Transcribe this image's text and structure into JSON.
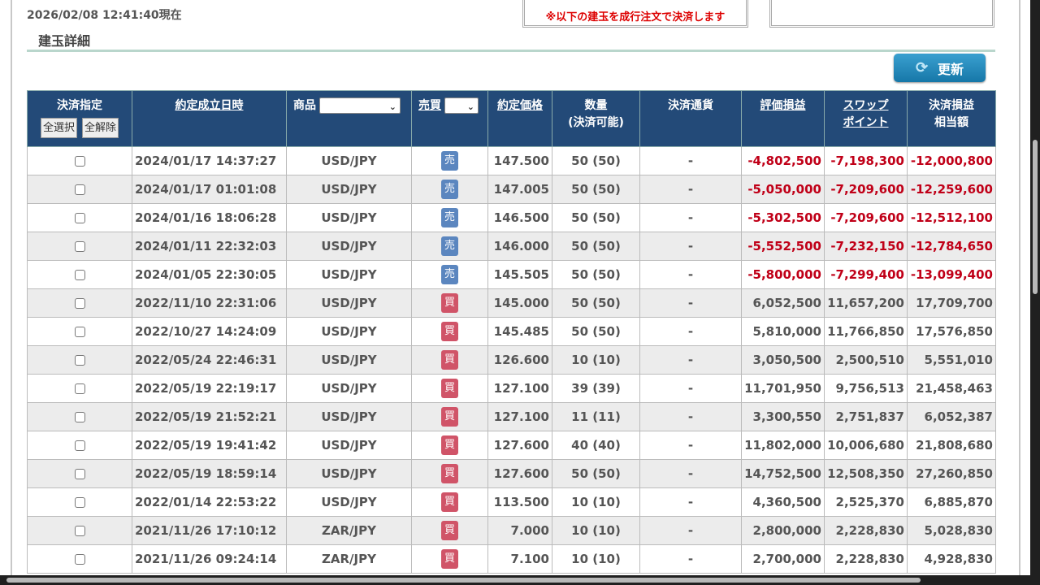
{
  "as_of": "2026/02/08 12:41:40現在",
  "section_title": "建玉詳細",
  "notice": "※以下の建玉を成行注文で決済します",
  "refresh_label": "更新",
  "header": {
    "settle": "決済指定",
    "select_all": "全選択",
    "clear_all": "全解除",
    "datetime": "約定成立日時",
    "product": "商品",
    "side": "売買",
    "price": "約定価格",
    "qty": "数量",
    "qty_sub": "(決済可能)",
    "currency": "決済通貨",
    "unrealized": "評価損益",
    "swap1": "スワップ",
    "swap2": "ポイント",
    "pl1": "決済損益",
    "pl2": "相当額",
    "product_selected": "",
    "side_selected": ""
  },
  "colors": {
    "header_bg": "#234a78",
    "sell": "#5b86bf",
    "buy": "#d05468",
    "negative": "#c00018"
  },
  "rows": [
    {
      "dt": "2024/01/17 14:37:27",
      "product": "USD/JPY",
      "side": "売",
      "price": "147.500",
      "qty": "50 (50)",
      "cur": "-",
      "pl": "-4,802,500",
      "swap": "-7,198,300",
      "total": "-12,000,800"
    },
    {
      "dt": "2024/01/17 01:01:08",
      "product": "USD/JPY",
      "side": "売",
      "price": "147.005",
      "qty": "50 (50)",
      "cur": "-",
      "pl": "-5,050,000",
      "swap": "-7,209,600",
      "total": "-12,259,600"
    },
    {
      "dt": "2024/01/16 18:06:28",
      "product": "USD/JPY",
      "side": "売",
      "price": "146.500",
      "qty": "50 (50)",
      "cur": "-",
      "pl": "-5,302,500",
      "swap": "-7,209,600",
      "total": "-12,512,100"
    },
    {
      "dt": "2024/01/11 22:32:03",
      "product": "USD/JPY",
      "side": "売",
      "price": "146.000",
      "qty": "50 (50)",
      "cur": "-",
      "pl": "-5,552,500",
      "swap": "-7,232,150",
      "total": "-12,784,650"
    },
    {
      "dt": "2024/01/05 22:30:05",
      "product": "USD/JPY",
      "side": "売",
      "price": "145.505",
      "qty": "50 (50)",
      "cur": "-",
      "pl": "-5,800,000",
      "swap": "-7,299,400",
      "total": "-13,099,400"
    },
    {
      "dt": "2022/11/10 22:31:06",
      "product": "USD/JPY",
      "side": "買",
      "price": "145.000",
      "qty": "50 (50)",
      "cur": "-",
      "pl": "6,052,500",
      "swap": "11,657,200",
      "total": "17,709,700"
    },
    {
      "dt": "2022/10/27 14:24:09",
      "product": "USD/JPY",
      "side": "買",
      "price": "145.485",
      "qty": "50 (50)",
      "cur": "-",
      "pl": "5,810,000",
      "swap": "11,766,850",
      "total": "17,576,850"
    },
    {
      "dt": "2022/05/24 22:46:31",
      "product": "USD/JPY",
      "side": "買",
      "price": "126.600",
      "qty": "10 (10)",
      "cur": "-",
      "pl": "3,050,500",
      "swap": "2,500,510",
      "total": "5,551,010"
    },
    {
      "dt": "2022/05/19 22:19:17",
      "product": "USD/JPY",
      "side": "買",
      "price": "127.100",
      "qty": "39 (39)",
      "cur": "-",
      "pl": "11,701,950",
      "swap": "9,756,513",
      "total": "21,458,463"
    },
    {
      "dt": "2022/05/19 21:52:21",
      "product": "USD/JPY",
      "side": "買",
      "price": "127.100",
      "qty": "11 (11)",
      "cur": "-",
      "pl": "3,300,550",
      "swap": "2,751,837",
      "total": "6,052,387"
    },
    {
      "dt": "2022/05/19 19:41:42",
      "product": "USD/JPY",
      "side": "買",
      "price": "127.600",
      "qty": "40 (40)",
      "cur": "-",
      "pl": "11,802,000",
      "swap": "10,006,680",
      "total": "21,808,680"
    },
    {
      "dt": "2022/05/19 18:59:14",
      "product": "USD/JPY",
      "side": "買",
      "price": "127.600",
      "qty": "50 (50)",
      "cur": "-",
      "pl": "14,752,500",
      "swap": "12,508,350",
      "total": "27,260,850"
    },
    {
      "dt": "2022/01/14 22:53:22",
      "product": "USD/JPY",
      "side": "買",
      "price": "113.500",
      "qty": "10 (10)",
      "cur": "-",
      "pl": "4,360,500",
      "swap": "2,525,370",
      "total": "6,885,870"
    },
    {
      "dt": "2021/11/26 17:10:12",
      "product": "ZAR/JPY",
      "side": "買",
      "price": "7.000",
      "qty": "10 (10)",
      "cur": "-",
      "pl": "2,800,000",
      "swap": "2,228,830",
      "total": "5,028,830"
    },
    {
      "dt": "2021/11/26 09:24:14",
      "product": "ZAR/JPY",
      "side": "買",
      "price": "7.100",
      "qty": "10 (10)",
      "cur": "-",
      "pl": "2,700,000",
      "swap": "2,228,830",
      "total": "4,928,830"
    }
  ]
}
